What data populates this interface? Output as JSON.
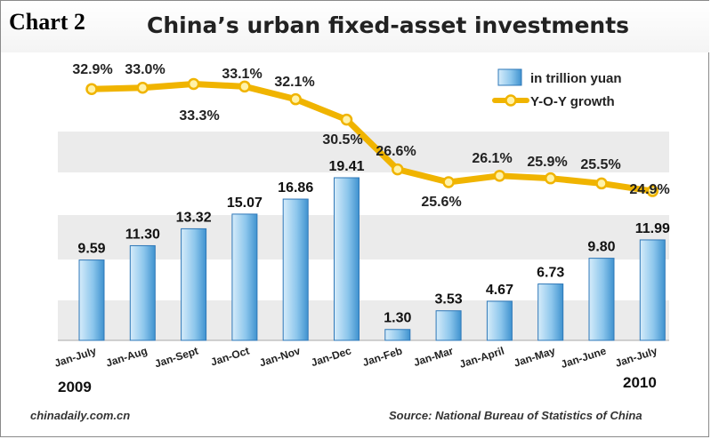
{
  "header": {
    "chart_number": "Chart 2",
    "title": "China’s urban fixed-asset investments"
  },
  "footer": {
    "credit": "chinadaily.com.cn",
    "source": "Source: National Bureau of Statistics of China"
  },
  "colors": {
    "bar_fill_top": "#d6ecfa",
    "bar_fill_bottom": "#5fa9dc",
    "bar_stroke": "#2f78b8",
    "line": "#f0b400",
    "marker_fill": "#fff2a8",
    "band": "#ebebeb"
  },
  "chart_data": {
    "type": "bar",
    "title": "China’s urban fixed-asset investments",
    "categories": [
      "Jan-July",
      "Jan-Aug",
      "Jan-Sept",
      "Jan-Oct",
      "Jan-Nov",
      "Jan-Dec",
      "Jan-Feb",
      "Jan-Mar",
      "Jan-April",
      "Jan-May",
      "Jan-June",
      "Jan-July"
    ],
    "year_labels": [
      {
        "text": "2009",
        "category_index": 0
      },
      {
        "text": "2010",
        "category_index": 11
      }
    ],
    "series": [
      {
        "name": "in trillion yuan",
        "type": "bar",
        "values": [
          9.59,
          11.3,
          13.32,
          15.07,
          16.86,
          19.41,
          1.3,
          3.53,
          4.67,
          6.73,
          9.8,
          11.99
        ],
        "labels": [
          "9.59",
          "11.30",
          "13.32",
          "15.07",
          "16.86",
          "19.41",
          "1.30",
          "3.53",
          "4.67",
          "6.73",
          "9.80",
          "11.99"
        ]
      },
      {
        "name": "Y-O-Y growth",
        "type": "line",
        "values": [
          32.9,
          33.0,
          33.3,
          33.1,
          32.1,
          30.5,
          26.6,
          25.6,
          26.1,
          25.9,
          25.5,
          24.9
        ],
        "labels": [
          "32.9%",
          "33.0%",
          "33.3%",
          "33.1%",
          "32.1%",
          "30.5%",
          "26.6%",
          "25.6%",
          "26.1%",
          "25.9%",
          "25.5%",
          "24.9%"
        ]
      }
    ],
    "bar_axis": {
      "min": 0,
      "max": 22
    },
    "line_axis": {
      "min": 13.2,
      "max": 35.7
    },
    "legend_position": "top-right",
    "grid": "alternating horizontal bands"
  }
}
